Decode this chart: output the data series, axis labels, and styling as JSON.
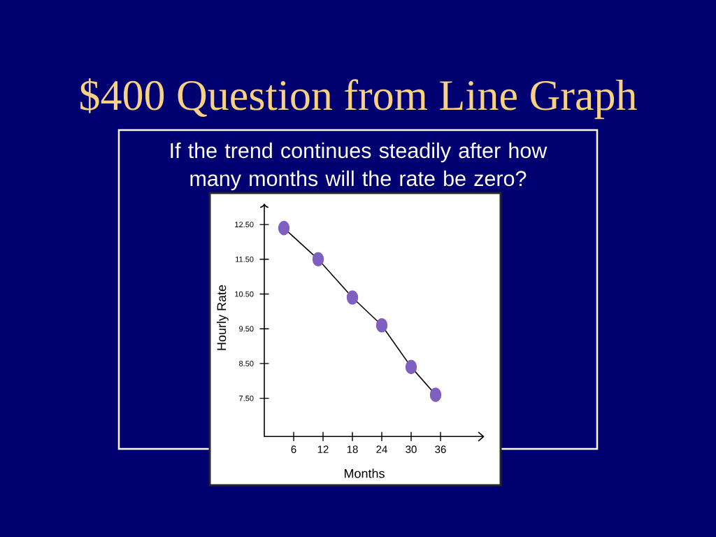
{
  "chart_data": {
    "type": "line",
    "title": "$400 Question from Line Graph",
    "subtitle": "If the trend continues steadily after how many months will the rate be zero?",
    "xlabel": "Months",
    "ylabel": "Hourly Rate",
    "x": [
      4,
      11,
      18,
      24,
      30,
      35
    ],
    "values": [
      12.4,
      11.5,
      10.4,
      9.6,
      8.4,
      7.6
    ],
    "color": "#7f5fbf",
    "marker": "circle",
    "line_style": "solid",
    "xlim": [
      0,
      44.8
    ],
    "ylim": [
      6.4,
      13.1
    ],
    "xticks": [
      6,
      12,
      18,
      24,
      30,
      36
    ],
    "yticks": [
      {
        "value": 7.5,
        "label": "7.50"
      },
      {
        "value": 8.5,
        "label": "8.50"
      },
      {
        "value": 9.5,
        "label": "9.50"
      },
      {
        "value": 10.5,
        "label": "10.50"
      },
      {
        "value": 11.5,
        "label": "11.50"
      },
      {
        "value": 12.5,
        "label": "12.50"
      }
    ]
  }
}
